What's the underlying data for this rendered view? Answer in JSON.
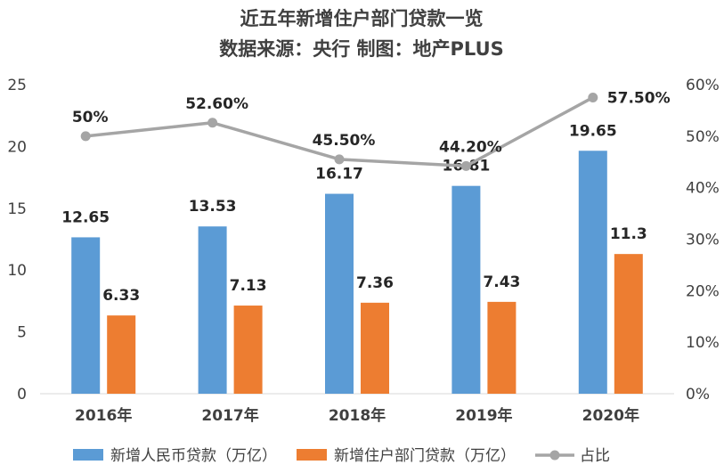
{
  "chart_data": {
    "type": "bar",
    "title": "近五年新增住户部门贷款一览",
    "subtitle": "数据来源：央行 制图：地产PLUS",
    "categories": [
      "2016年",
      "2017年",
      "2018年",
      "2019年",
      "2020年"
    ],
    "series": [
      {
        "name": "新增人民币贷款（万亿）",
        "type": "bar",
        "axis": "left",
        "color": "#5B9BD5",
        "values": [
          12.65,
          13.53,
          16.17,
          16.81,
          19.65
        ],
        "labels": [
          "12.65",
          "13.53",
          "16.17",
          "16.81",
          "19.65"
        ]
      },
      {
        "name": "新增住户部门贷款（万亿）",
        "type": "bar",
        "axis": "left",
        "color": "#ED7D31",
        "values": [
          6.33,
          7.13,
          7.36,
          7.43,
          11.3
        ],
        "labels": [
          "6.33",
          "7.13",
          "7.36",
          "7.43",
          "11.3"
        ]
      },
      {
        "name": "占比",
        "type": "line",
        "axis": "right",
        "color": "#A5A5A5",
        "values": [
          50,
          52.6,
          45.5,
          44.2,
          57.5
        ],
        "labels": [
          "50%",
          "52.60%",
          "45.50%",
          "44.20%",
          "57.50%"
        ]
      }
    ],
    "ylim_left": [
      0,
      25
    ],
    "yticks_left": [
      "0",
      "5",
      "10",
      "15",
      "20",
      "25"
    ],
    "ylim_right": [
      0,
      60
    ],
    "yticks_right": [
      "0%",
      "10%",
      "20%",
      "30%",
      "40%",
      "50%",
      "60%"
    ],
    "legend_position": "bottom",
    "grid": false
  }
}
